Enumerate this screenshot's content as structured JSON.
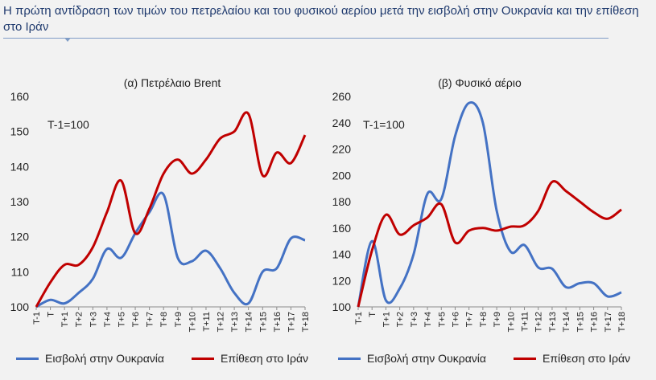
{
  "title": "Η πρώτη αντίδραση των τιμών του πετρελαίου και του φυσικού αερίου μετά την εισβολή στην Ουκρανία και την επίθεση στο Ιράν",
  "colors": {
    "ukraine": "#4472c4",
    "iran": "#c00000"
  },
  "chart_data": [
    {
      "type": "line",
      "title": "(α) Πετρέλαιο Brent",
      "annotation": "T-1=100",
      "ylim": [
        100,
        160
      ],
      "yticks": [
        100,
        110,
        120,
        130,
        140,
        150,
        160
      ],
      "categories": [
        "T-1",
        "T",
        "T+1",
        "T+2",
        "T+3",
        "T+4",
        "T+5",
        "T+6",
        "T+7",
        "T+8",
        "T+9",
        "T+10",
        "T+11",
        "T+12",
        "T+13",
        "T+14",
        "T+15",
        "T+16",
        "T+17",
        "T+18"
      ],
      "series": [
        {
          "name": "Εισβολή στην Ουκρανία",
          "color": "#4472c4",
          "values": [
            100,
            102,
            101,
            104,
            108,
            116.5,
            114,
            121,
            127,
            132,
            114,
            113,
            116,
            111,
            104,
            101,
            110,
            111,
            119.5,
            119
          ]
        },
        {
          "name": "Επίθεση στο Ιράν",
          "color": "#c00000",
          "values": [
            100,
            107,
            112,
            112,
            117,
            127,
            136,
            121,
            128,
            138,
            142,
            138,
            142,
            148,
            150,
            155,
            137.5,
            144,
            141,
            149
          ]
        }
      ]
    },
    {
      "type": "line",
      "title": "(β) Φυσικό αέριο",
      "annotation": "T-1=100",
      "ylim": [
        100,
        260
      ],
      "yticks": [
        100,
        120,
        140,
        160,
        180,
        200,
        220,
        240,
        260
      ],
      "categories": [
        "T-1",
        "T",
        "T+1",
        "T+2",
        "T+3",
        "T+4",
        "T+5",
        "T+6",
        "T+7",
        "T+8",
        "T+9",
        "T+10",
        "T+11",
        "T+12",
        "T+13",
        "T+14",
        "T+15",
        "T+16",
        "T+17",
        "T+18"
      ],
      "series": [
        {
          "name": "Εισβολή στην Ουκρανία",
          "color": "#4472c4",
          "values": [
            100,
            150,
            105,
            114,
            140,
            186,
            182,
            230,
            255,
            240,
            173,
            142,
            147,
            130,
            129,
            115,
            118,
            118,
            108,
            111
          ]
        },
        {
          "name": "Επίθεση στο Ιράν",
          "color": "#c00000",
          "values": [
            100,
            143,
            170,
            155,
            162,
            168,
            178,
            149,
            158,
            160,
            158,
            161,
            162,
            173,
            195,
            188,
            180,
            172,
            167,
            174
          ]
        }
      ]
    }
  ],
  "legend": {
    "left": {
      "ukraine": "Εισβολή στην Ουκρανία",
      "iran": "Επίθεση στο Ιράν"
    },
    "right": {
      "ukraine": "Εισβολή στην Ουκρανία",
      "iran": "Επίθεση στο Ιράν"
    }
  }
}
